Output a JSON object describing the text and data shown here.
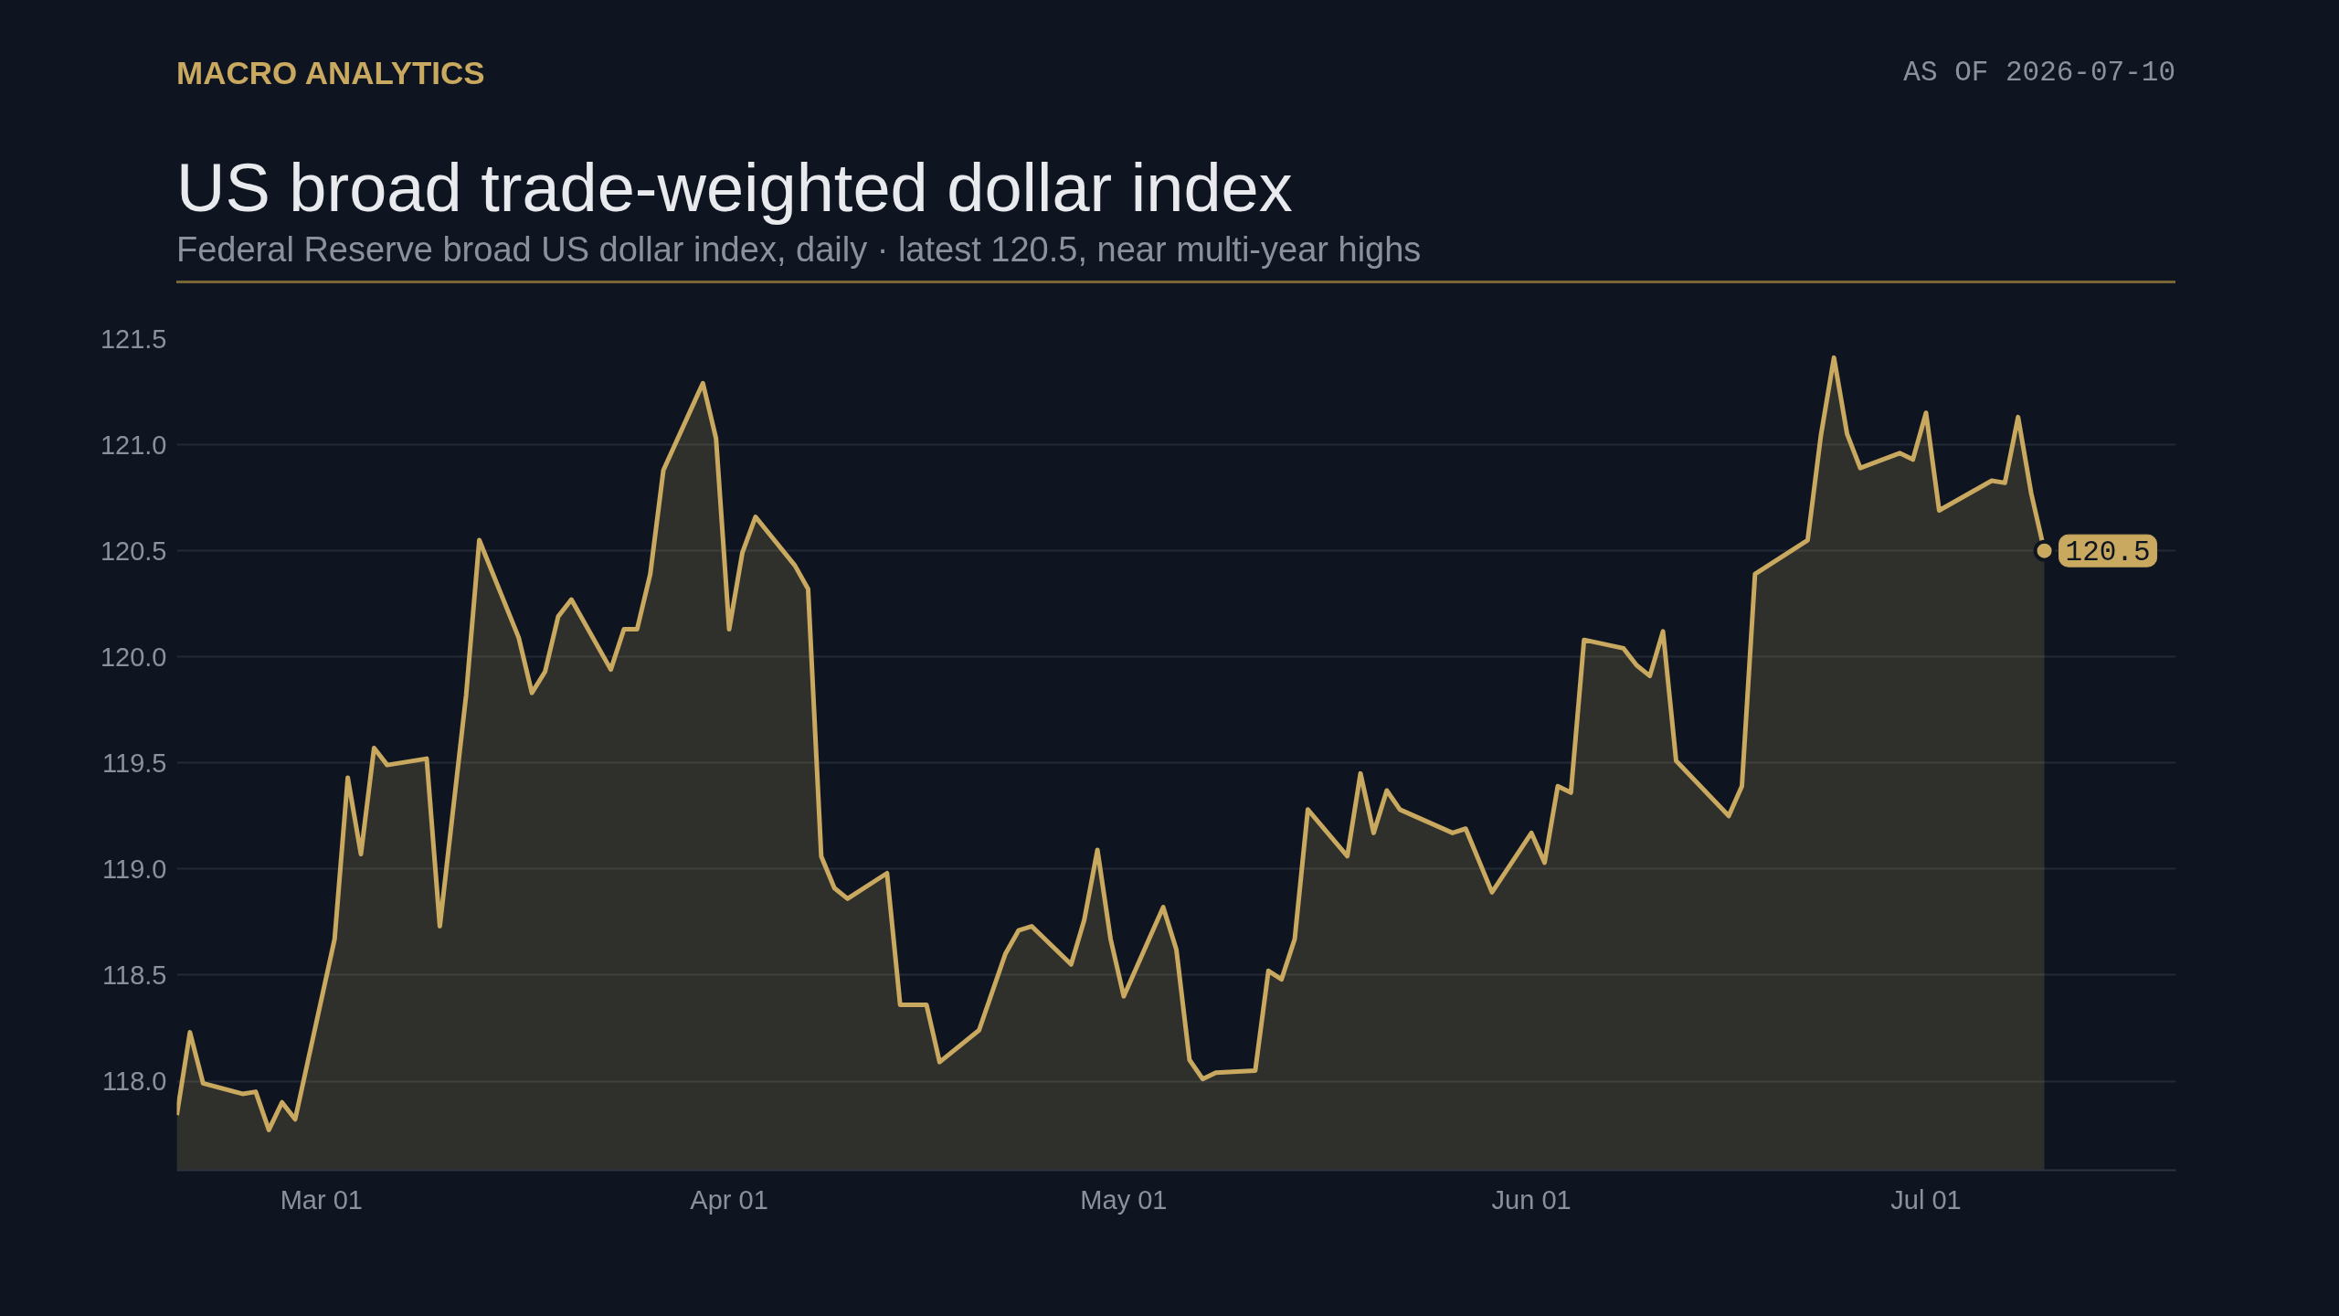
{
  "chart_data": {
    "type": "area",
    "title": "US broad trade-weighted dollar index",
    "subtitle": "Federal Reserve broad US dollar index, daily  ·  latest 120.5, near multi-year highs",
    "annotations": [
      "MACRO ANALYTICS",
      "AS OF 2026-07-10",
      {
        "text": "120.5",
        "x": "2026-07-10",
        "y": 120.5
      }
    ],
    "x": [
      "2026-02-18",
      "2026-02-19",
      "2026-02-20",
      "2026-02-23",
      "2026-02-24",
      "2026-02-25",
      "2026-02-26",
      "2026-02-27",
      "2026-03-02",
      "2026-03-03",
      "2026-03-04",
      "2026-03-05",
      "2026-03-06",
      "2026-03-09",
      "2026-03-10",
      "2026-03-12",
      "2026-03-13",
      "2026-03-16",
      "2026-03-17",
      "2026-03-18",
      "2026-03-19",
      "2026-03-20",
      "2026-03-23",
      "2026-03-24",
      "2026-03-25",
      "2026-03-26",
      "2026-03-27",
      "2026-03-30",
      "2026-03-31",
      "2026-04-01",
      "2026-04-02",
      "2026-04-03",
      "2026-04-06",
      "2026-04-07",
      "2026-04-08",
      "2026-04-09",
      "2026-04-10",
      "2026-04-13",
      "2026-04-14",
      "2026-04-16",
      "2026-04-17",
      "2026-04-20",
      "2026-04-21",
      "2026-04-22",
      "2026-04-23",
      "2026-04-24",
      "2026-04-27",
      "2026-04-28",
      "2026-04-29",
      "2026-04-30",
      "2026-05-01",
      "2026-05-04",
      "2026-05-05",
      "2026-05-06",
      "2026-05-07",
      "2026-05-08",
      "2026-05-11",
      "2026-05-12",
      "2026-05-13",
      "2026-05-14",
      "2026-05-15",
      "2026-05-18",
      "2026-05-19",
      "2026-05-20",
      "2026-05-21",
      "2026-05-22",
      "2026-05-26",
      "2026-05-27",
      "2026-05-29",
      "2026-06-01",
      "2026-06-02",
      "2026-06-03",
      "2026-06-04",
      "2026-06-05",
      "2026-06-08",
      "2026-06-09",
      "2026-06-10",
      "2026-06-11",
      "2026-06-12",
      "2026-06-16",
      "2026-06-17",
      "2026-06-18",
      "2026-06-22",
      "2026-06-23",
      "2026-06-24",
      "2026-06-25",
      "2026-06-26",
      "2026-06-29",
      "2026-06-30",
      "2026-07-01",
      "2026-07-02",
      "2026-07-06",
      "2026-07-07",
      "2026-07-08",
      "2026-07-09",
      "2026-07-10"
    ],
    "series": [
      {
        "color": "#c9a85f",
        "values": [
          117.84,
          118.23,
          117.99,
          117.94,
          117.95,
          117.77,
          117.9,
          117.82,
          118.67,
          119.43,
          119.07,
          119.57,
          119.49,
          119.52,
          118.73,
          119.82,
          120.55,
          120.09,
          119.83,
          119.93,
          120.19,
          120.27,
          119.94,
          120.13,
          120.13,
          120.39,
          120.88,
          121.29,
          121.03,
          120.13,
          120.49,
          120.66,
          120.43,
          120.32,
          119.06,
          118.91,
          118.86,
          118.98,
          118.36,
          118.36,
          118.09,
          118.24,
          118.42,
          118.6,
          118.71,
          118.73,
          118.55,
          118.76,
          119.09,
          118.67,
          118.4,
          118.82,
          118.62,
          118.1,
          118.01,
          118.04,
          118.05,
          118.52,
          118.48,
          118.67,
          119.28,
          119.06,
          119.45,
          119.17,
          119.37,
          119.28,
          119.17,
          119.19,
          118.89,
          119.17,
          119.03,
          119.39,
          119.36,
          120.08,
          120.04,
          119.96,
          119.91,
          120.12,
          119.51,
          119.25,
          119.39,
          120.39,
          120.55,
          121.04,
          121.41,
          121.05,
          120.89,
          120.96,
          120.93,
          121.15,
          120.69,
          120.83,
          120.82,
          121.13,
          120.77,
          120.5
        ]
      }
    ],
    "xlim": [
      "2026-02-18",
      "2026-07-20"
    ],
    "ylim": [
      117.58,
      121.5
    ],
    "xticks": [
      {
        "value": "2026-03-01",
        "label": "Mar 01"
      },
      {
        "value": "2026-04-01",
        "label": "Apr 01"
      },
      {
        "value": "2026-05-01",
        "label": "May 01"
      },
      {
        "value": "2026-06-01",
        "label": "Jun 01"
      },
      {
        "value": "2026-07-01",
        "label": "Jul 01"
      }
    ],
    "yticks": [
      {
        "value": 118,
        "label": "118.0"
      },
      118.5,
      {
        "value": 119,
        "label": "119.0"
      },
      119.5,
      {
        "value": 120,
        "label": "120.0"
      },
      120.5,
      {
        "value": 121,
        "label": "121.0"
      },
      121.5
    ],
    "grid": "y"
  }
}
